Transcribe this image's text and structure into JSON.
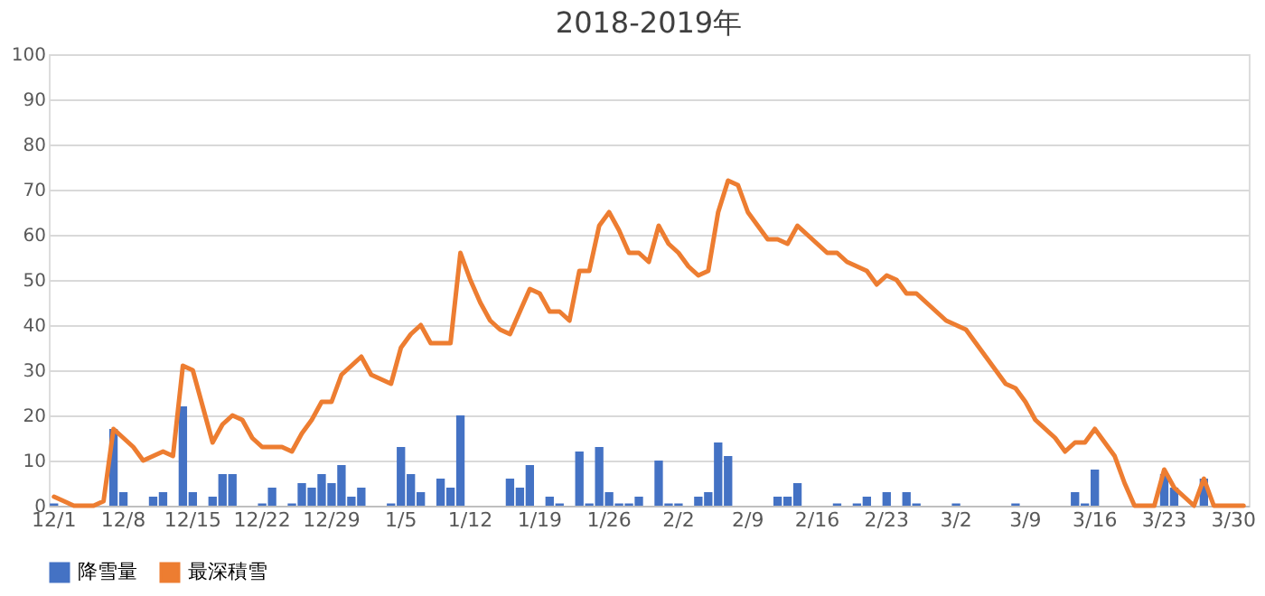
{
  "chart_data": {
    "type": "bar",
    "title": "2018-2019年",
    "categories": [
      "12/1",
      null,
      null,
      null,
      null,
      null,
      null,
      "12/8",
      null,
      null,
      null,
      null,
      null,
      null,
      "12/15",
      null,
      null,
      null,
      null,
      null,
      null,
      "12/22",
      null,
      null,
      null,
      null,
      null,
      null,
      "12/29",
      null,
      null,
      null,
      null,
      null,
      null,
      "1/5",
      null,
      null,
      null,
      null,
      null,
      null,
      "1/12",
      null,
      null,
      null,
      null,
      null,
      null,
      "1/19",
      null,
      null,
      null,
      null,
      null,
      null,
      "1/26",
      null,
      null,
      null,
      null,
      null,
      null,
      "2/2",
      null,
      null,
      null,
      null,
      null,
      null,
      "2/9",
      null,
      null,
      null,
      null,
      null,
      null,
      "2/16",
      null,
      null,
      null,
      null,
      null,
      null,
      "2/23",
      null,
      null,
      null,
      null,
      null,
      null,
      "3/2",
      null,
      null,
      null,
      null,
      null,
      null,
      "3/9",
      null,
      null,
      null,
      null,
      null,
      null,
      "3/16",
      null,
      null,
      null,
      null,
      null,
      null,
      "3/23",
      null,
      null,
      null,
      null,
      null,
      null,
      "3/30",
      null
    ],
    "series": [
      {
        "name": "降雪量",
        "color": "#4472c4",
        "values": [
          0.5,
          0,
          0,
          0,
          0,
          0,
          17,
          3,
          0,
          0,
          2,
          3,
          0,
          22,
          3,
          0,
          2,
          7,
          7,
          0,
          0,
          0.5,
          4,
          0,
          0.5,
          5,
          4,
          7,
          5,
          9,
          2,
          4,
          0,
          0,
          0.5,
          13,
          7,
          3,
          0,
          6,
          4,
          20,
          0,
          0,
          0,
          0,
          6,
          4,
          9,
          0,
          2,
          0.5,
          0,
          12,
          0.5,
          13,
          3,
          0.5,
          0.5,
          2,
          0,
          10,
          0.5,
          0.5,
          0,
          2,
          3,
          14,
          11,
          0,
          0,
          0,
          0,
          2,
          2,
          5,
          0,
          0,
          0,
          0.5,
          0,
          0.5,
          2,
          0,
          3,
          0,
          3,
          0.5,
          0,
          0,
          0,
          0.5,
          0,
          0,
          0,
          0,
          0,
          0.5,
          0,
          0,
          0,
          0,
          0,
          3,
          0.5,
          8,
          0,
          0,
          0,
          0,
          0,
          0,
          7,
          4,
          0,
          0,
          6,
          0,
          0,
          0,
          0
        ]
      },
      {
        "name": "最深積雪",
        "type": "line",
        "color": "#ed7d31",
        "values": [
          2,
          1,
          0,
          0,
          0,
          1,
          17,
          15,
          13,
          10,
          11,
          12,
          11,
          31,
          30,
          22,
          14,
          18,
          20,
          19,
          15,
          13,
          13,
          13,
          12,
          16,
          19,
          23,
          23,
          29,
          31,
          33,
          29,
          28,
          27,
          35,
          38,
          40,
          36,
          36,
          36,
          56,
          50,
          45,
          41,
          39,
          38,
          43,
          48,
          47,
          43,
          43,
          41,
          52,
          52,
          62,
          65,
          61,
          56,
          56,
          54,
          62,
          58,
          56,
          53,
          51,
          52,
          65,
          72,
          71,
          65,
          62,
          59,
          59,
          58,
          62,
          60,
          58,
          56,
          56,
          54,
          53,
          52,
          49,
          51,
          50,
          47,
          47,
          45,
          43,
          41,
          40,
          39,
          36,
          33,
          30,
          27,
          26,
          23,
          19,
          17,
          15,
          12,
          14,
          14,
          17,
          14,
          11,
          5,
          0,
          0,
          0,
          8,
          4,
          2,
          0,
          6,
          0,
          0,
          0,
          0
        ]
      }
    ],
    "ylim": [
      0,
      100
    ],
    "yticks": [
      0,
      10,
      20,
      30,
      40,
      50,
      60,
      70,
      80,
      90,
      100
    ],
    "grid": "y",
    "legend": "bottom"
  }
}
